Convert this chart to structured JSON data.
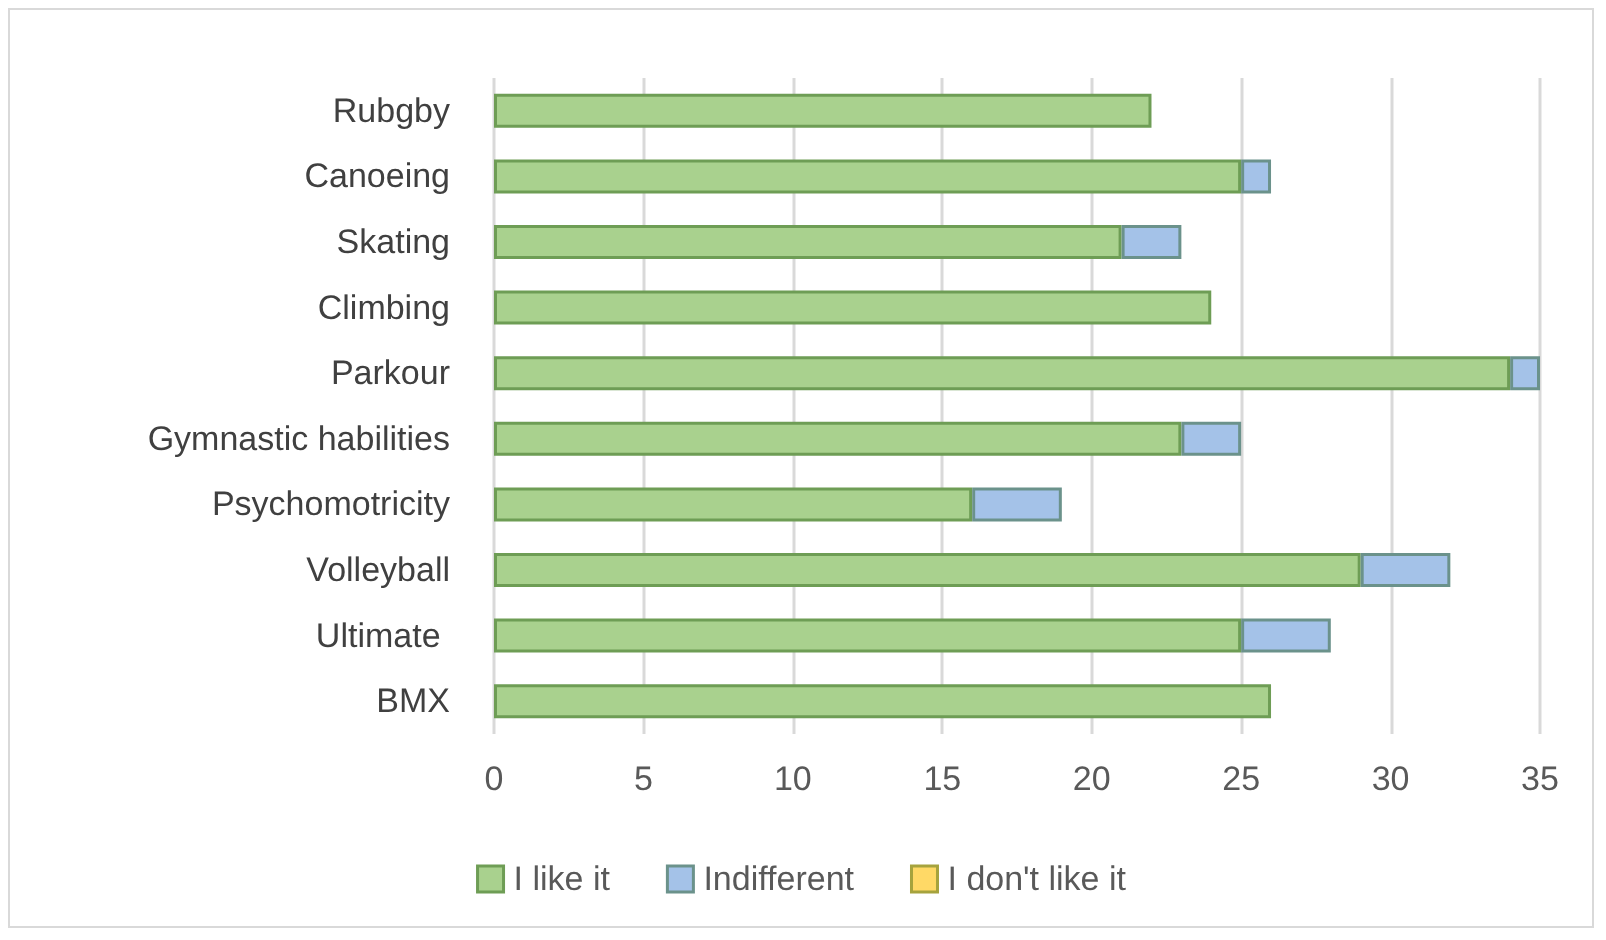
{
  "chart_data": {
    "type": "bar",
    "orientation": "horizontal",
    "stacked": true,
    "categories": [
      "Rubgby",
      "Canoeing",
      "Skating",
      "Climbing",
      "Parkour",
      "Gymnastic habilities",
      "Psychomotricity",
      "Volleyball",
      "Ultimate ",
      "BMX"
    ],
    "series": [
      {
        "name": "I like it",
        "color": "#a9d18e",
        "values": [
          22,
          25,
          21,
          24,
          34,
          23,
          16,
          29,
          25,
          26
        ]
      },
      {
        "name": "Indifferent",
        "color": "#a4c2e8",
        "values": [
          null,
          1,
          2,
          null,
          1,
          2,
          3,
          3,
          3,
          null
        ]
      },
      {
        "name": "I don't like it",
        "color": "#ffd966",
        "values": [
          null,
          null,
          null,
          null,
          null,
          null,
          null,
          null,
          null,
          null
        ]
      }
    ],
    "xlim": [
      0,
      35
    ],
    "xticks": [
      0,
      5,
      10,
      15,
      20,
      25,
      30,
      35
    ],
    "grid": "x",
    "legend": "bottom"
  }
}
